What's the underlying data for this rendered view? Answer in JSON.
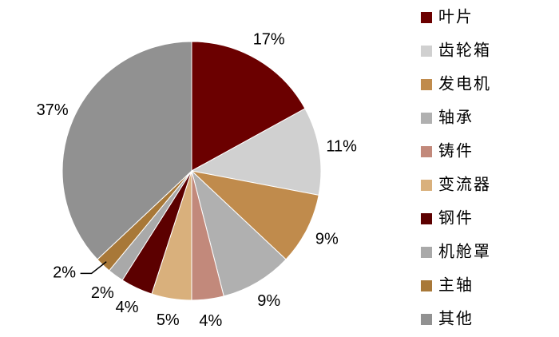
{
  "chart_data": {
    "type": "pie",
    "categories": [
      "叶片",
      "齿轮箱",
      "发电机",
      "轴承",
      "铸件",
      "变流器",
      "钢件",
      "机舱罩",
      "主轴",
      "其他"
    ],
    "values": [
      17,
      11,
      9,
      9,
      4,
      5,
      4,
      2,
      2,
      37
    ],
    "value_labels": [
      "17%",
      "11%",
      "9%",
      "9%",
      "4%",
      "5%",
      "4%",
      "2%",
      "2%",
      "37%"
    ],
    "colors": [
      "#6b0000",
      "#d0d0d0",
      "#c08b4c",
      "#b0b0b0",
      "#c2897b",
      "#d9b07c",
      "#5c0000",
      "#a9a9a9",
      "#a87838",
      "#919191"
    ],
    "legend": "right"
  }
}
